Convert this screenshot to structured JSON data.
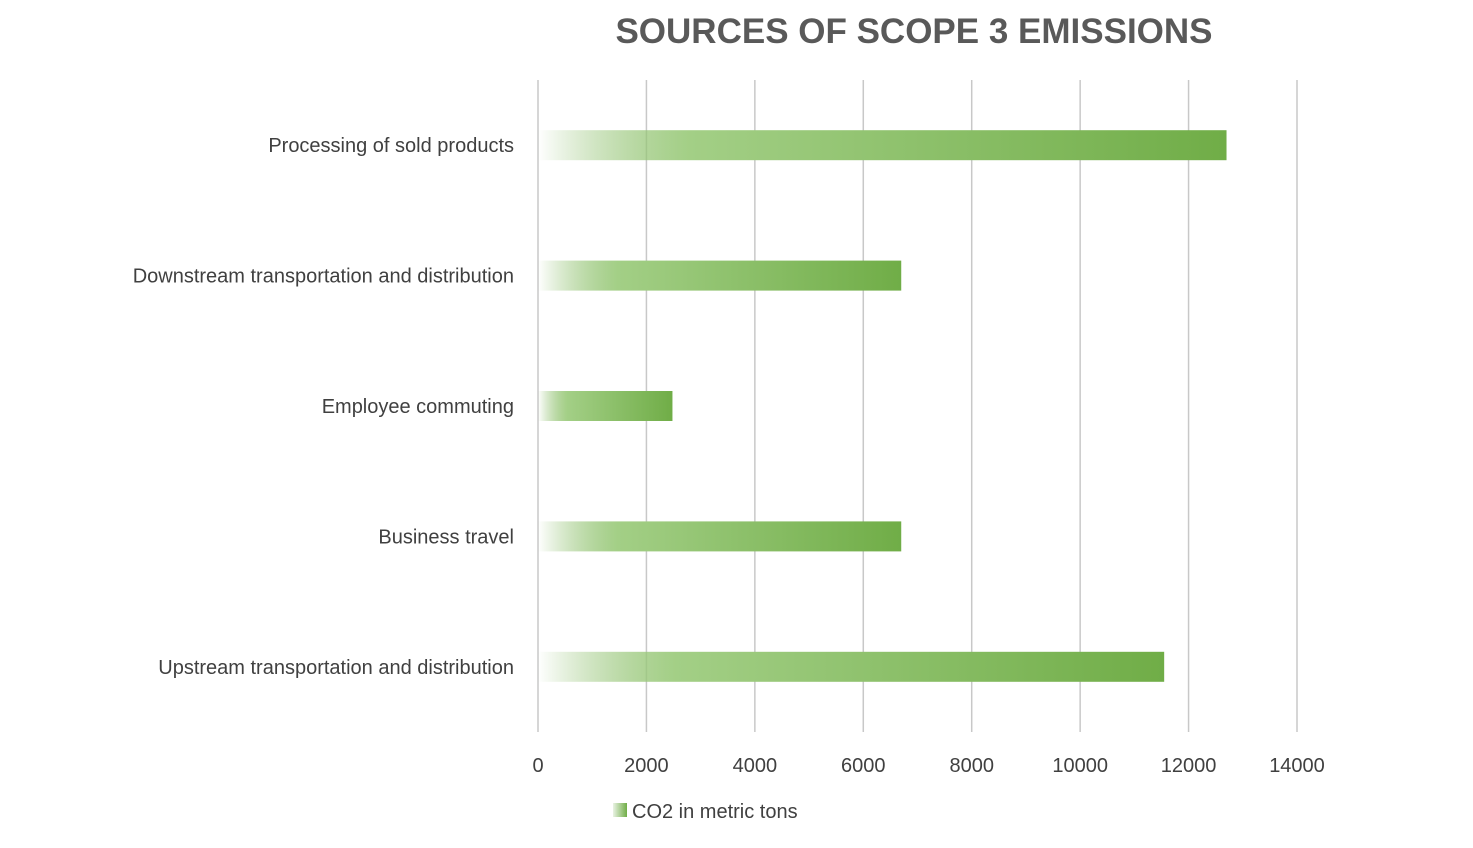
{
  "chart_data": {
    "type": "bar",
    "orientation": "horizontal",
    "title": "SOURCES OF SCOPE 3 EMISSIONS",
    "categories": [
      "Upstream transportation and distribution",
      "Business travel",
      "Employee commuting",
      "Downstream transportation and distribution",
      "Processing of sold products"
    ],
    "series": [
      {
        "name": "CO2 in metric tons",
        "values": [
          11550,
          6700,
          2480,
          6700,
          12700
        ],
        "color": "#70ad47"
      }
    ],
    "xlim": [
      0,
      14000
    ],
    "xticks": [
      "0",
      "2000",
      "4000",
      "6000",
      "8000",
      "10000",
      "12000",
      "14000"
    ],
    "grid": "vertical",
    "legend_position": "bottom"
  }
}
